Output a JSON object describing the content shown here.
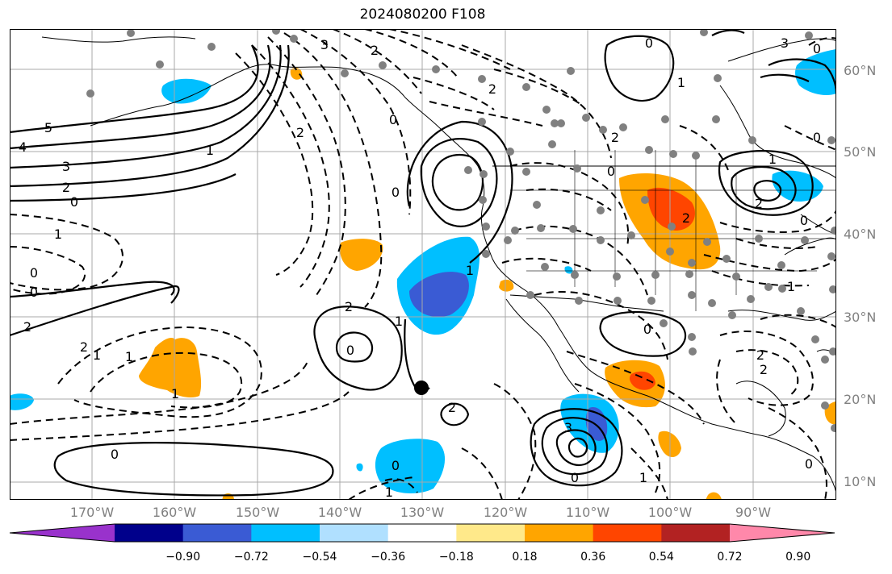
{
  "title": "2024080200 F108",
  "lat_labels": [
    "60°N",
    "50°N",
    "40°N",
    "30°N",
    "20°N",
    "10°N"
  ],
  "lon_labels": [
    "170°W",
    "160°W",
    "150°W",
    "140°W",
    "130°W",
    "120°W",
    "110°W",
    "100°W",
    "90°W"
  ],
  "colorbar": {
    "colors": [
      "#9932cc",
      "#00008b",
      "#3a5bd4",
      "#00bfff",
      "#b0e0ff",
      "#ffffff",
      "#ffe98a",
      "#ffa500",
      "#ff4500",
      "#b22222",
      "#ff88aa"
    ],
    "tick_labels": [
      "−0.90",
      "−0.72",
      "−0.54",
      "−0.36",
      "−0.18",
      "0.18",
      "0.36",
      "0.54",
      "0.72",
      "0.90"
    ]
  },
  "contour_labels": [
    {
      "text": "5"
    },
    {
      "text": "4"
    },
    {
      "text": "3"
    },
    {
      "text": "2"
    },
    {
      "text": "0"
    },
    {
      "text": "1"
    },
    {
      "text": "2"
    },
    {
      "text": "0"
    },
    {
      "text": "1"
    },
    {
      "text": "0"
    },
    {
      "text": "0"
    },
    {
      "text": "2"
    },
    {
      "text": "2"
    },
    {
      "text": "1"
    },
    {
      "text": "1"
    },
    {
      "text": "2"
    },
    {
      "text": "0"
    },
    {
      "text": "1"
    },
    {
      "text": "0"
    },
    {
      "text": "0"
    },
    {
      "text": "1"
    },
    {
      "text": "3"
    },
    {
      "text": "0"
    },
    {
      "text": "2"
    },
    {
      "text": "2"
    },
    {
      "text": "0"
    },
    {
      "text": "1"
    },
    {
      "text": "2"
    },
    {
      "text": "0"
    },
    {
      "text": "2"
    },
    {
      "text": "1"
    },
    {
      "text": "2"
    },
    {
      "text": "0"
    },
    {
      "text": "2"
    },
    {
      "text": "3"
    },
    {
      "text": "0"
    },
    {
      "text": "0"
    },
    {
      "text": "1"
    },
    {
      "text": "1"
    },
    {
      "text": "3"
    },
    {
      "text": "0"
    },
    {
      "text": "1"
    },
    {
      "text": "1"
    },
    {
      "text": "0"
    },
    {
      "text": "2"
    },
    {
      "text": "0"
    },
    {
      "text": "2"
    }
  ]
}
